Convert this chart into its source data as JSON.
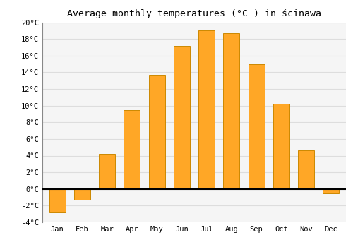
{
  "title": "Average monthly temperatures (°C ) in ścinawa",
  "months": [
    "Jan",
    "Feb",
    "Mar",
    "Apr",
    "May",
    "Jun",
    "Jul",
    "Aug",
    "Sep",
    "Oct",
    "Nov",
    "Dec"
  ],
  "values": [
    -2.8,
    -1.3,
    4.2,
    9.5,
    13.7,
    17.2,
    19.0,
    18.7,
    15.0,
    10.2,
    4.6,
    -0.5
  ],
  "bar_color_pos": "#FFA726",
  "bar_color_neg": "#FFA726",
  "bar_edge_color": "#CC8800",
  "background_color": "#ffffff",
  "plot_bg_color": "#f5f5f5",
  "grid_color": "#dddddd",
  "ylim": [
    -4,
    20
  ],
  "yticks": [
    -4,
    -2,
    0,
    2,
    4,
    6,
    8,
    10,
    12,
    14,
    16,
    18,
    20
  ],
  "zero_line_color": "#000000",
  "title_fontsize": 9.5,
  "tick_fontsize": 7.5,
  "bar_width": 0.65
}
